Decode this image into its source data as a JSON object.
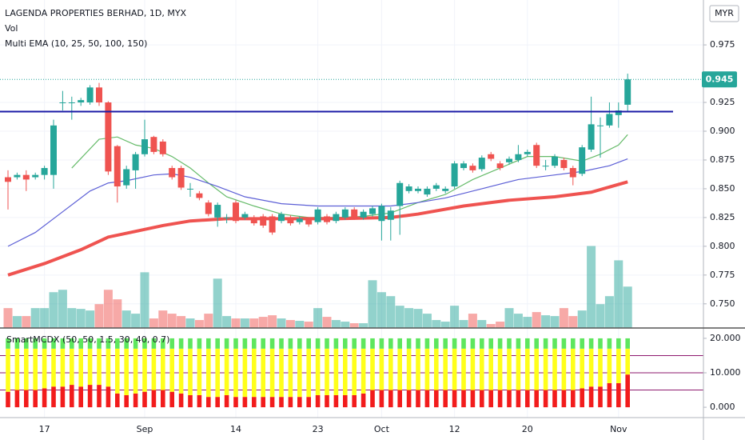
{
  "chart_data": [
    {
      "type": "candlestick",
      "title": "LAGENDA PROPERTIES BERHAD, 1D, MYX",
      "volume_label": "Vol",
      "ema_label": "Multi EMA (10, 25, 50, 100, 150)",
      "currency": "MYR",
      "categories": [
        null,
        null,
        null,
        null,
        "17",
        null,
        null,
        null,
        null,
        null,
        null,
        null,
        null,
        null,
        null,
        "Sep",
        null,
        null,
        null,
        null,
        null,
        null,
        null,
        null,
        null,
        "14",
        null,
        null,
        null,
        null,
        null,
        null,
        null,
        null,
        "23",
        null,
        null,
        null,
        null,
        null,
        null,
        "Oct",
        null,
        null,
        null,
        null,
        null,
        null,
        null,
        "12",
        null,
        null,
        null,
        null,
        null,
        null,
        null,
        "20",
        null,
        null,
        null,
        null,
        null,
        null,
        null,
        null,
        null,
        "Nov",
        null
      ],
      "open": [
        0.86,
        0.86,
        0.862,
        0.86,
        0.862,
        0.862,
        0.925,
        0.925,
        0.925,
        0.925,
        0.938,
        0.925,
        0.887,
        0.853,
        0.866,
        0.88,
        0.895,
        0.891,
        0.868,
        0.868,
        0.85,
        0.846,
        0.838,
        0.825,
        0.825,
        0.838,
        0.825,
        0.825,
        0.826,
        0.826,
        0.822,
        0.825,
        0.821,
        0.823,
        0.821,
        0.826,
        0.822,
        0.825,
        0.832,
        0.825,
        0.828,
        0.822,
        0.823,
        0.835,
        0.848,
        0.848,
        0.845,
        0.85,
        0.848,
        0.852,
        0.868,
        0.87,
        0.867,
        0.88,
        0.872,
        0.873,
        0.875,
        0.88,
        0.888,
        0.87,
        0.87,
        0.875,
        0.868,
        0.863,
        0.884,
        0.905,
        0.905,
        0.914,
        0.923
      ],
      "high": [
        0.866,
        0.864,
        0.866,
        0.864,
        0.87,
        0.91,
        0.935,
        0.93,
        0.929,
        0.94,
        0.942,
        0.926,
        0.888,
        0.87,
        0.882,
        0.91,
        0.896,
        0.893,
        0.87,
        0.87,
        0.855,
        0.848,
        0.84,
        0.838,
        0.828,
        0.84,
        0.83,
        0.827,
        0.828,
        0.828,
        0.83,
        0.827,
        0.826,
        0.825,
        0.834,
        0.828,
        0.83,
        0.834,
        0.834,
        0.832,
        0.835,
        0.837,
        0.834,
        0.857,
        0.854,
        0.852,
        0.852,
        0.855,
        0.852,
        0.874,
        0.874,
        0.872,
        0.879,
        0.882,
        0.874,
        0.878,
        0.888,
        0.884,
        0.89,
        0.875,
        0.88,
        0.877,
        0.87,
        0.888,
        0.93,
        0.912,
        0.925,
        0.925,
        0.95
      ],
      "low": [
        0.832,
        0.858,
        0.848,
        0.858,
        0.858,
        0.85,
        0.918,
        0.91,
        0.922,
        0.923,
        0.922,
        0.862,
        0.838,
        0.85,
        0.85,
        0.878,
        0.88,
        0.878,
        0.858,
        0.849,
        0.843,
        0.84,
        0.826,
        0.817,
        0.82,
        0.82,
        0.823,
        0.818,
        0.816,
        0.81,
        0.82,
        0.818,
        0.819,
        0.817,
        0.819,
        0.819,
        0.82,
        0.823,
        0.823,
        0.823,
        0.826,
        0.805,
        0.805,
        0.81,
        0.846,
        0.846,
        0.843,
        0.848,
        0.846,
        0.85,
        0.866,
        0.864,
        0.865,
        0.874,
        0.866,
        0.871,
        0.873,
        0.878,
        0.868,
        0.866,
        0.868,
        0.866,
        0.853,
        0.861,
        0.882,
        0.877,
        0.903,
        0.903,
        0.917
      ],
      "close": [
        0.856,
        0.862,
        0.858,
        0.862,
        0.868,
        0.905,
        0.925,
        0.925,
        0.927,
        0.938,
        0.925,
        0.865,
        0.852,
        0.867,
        0.88,
        0.893,
        0.882,
        0.88,
        0.86,
        0.851,
        0.85,
        0.842,
        0.828,
        0.836,
        0.825,
        0.822,
        0.828,
        0.82,
        0.818,
        0.812,
        0.828,
        0.82,
        0.824,
        0.819,
        0.832,
        0.821,
        0.828,
        0.832,
        0.825,
        0.83,
        0.833,
        0.835,
        0.831,
        0.855,
        0.852,
        0.85,
        0.85,
        0.853,
        0.85,
        0.872,
        0.872,
        0.866,
        0.877,
        0.876,
        0.868,
        0.876,
        0.88,
        0.882,
        0.87,
        0.87,
        0.878,
        0.868,
        0.86,
        0.886,
        0.906,
        0.905,
        0.915,
        0.918,
        0.945
      ],
      "volume": [
        25,
        15,
        15,
        25,
        25,
        45,
        48,
        25,
        24,
        22,
        30,
        48,
        36,
        22,
        18,
        70,
        12,
        22,
        18,
        15,
        12,
        10,
        18,
        62,
        15,
        12,
        12,
        12,
        14,
        16,
        12,
        10,
        9,
        8,
        25,
        14,
        10,
        8,
        6,
        6,
        60,
        45,
        40,
        28,
        25,
        24,
        18,
        10,
        8,
        28,
        10,
        18,
        10,
        5,
        8,
        25,
        18,
        14,
        20,
        16,
        15,
        25,
        15,
        22,
        103,
        30,
        40,
        85,
        52
      ],
      "up_color": "#26a69a",
      "down_color": "#ef5350",
      "ema_lines": [
        {
          "color": "#66bb6a",
          "width": 1.2,
          "x": [
            7,
            10,
            12,
            14,
            16,
            18,
            20,
            22,
            24,
            27,
            30,
            33,
            36,
            39,
            42,
            45,
            48,
            51,
            54,
            57,
            60,
            63,
            65,
            67,
            68
          ],
          "values": [
            0.868,
            0.893,
            0.895,
            0.888,
            0.885,
            0.878,
            0.868,
            0.855,
            0.843,
            0.835,
            0.828,
            0.825,
            0.825,
            0.826,
            0.829,
            0.838,
            0.845,
            0.858,
            0.868,
            0.878,
            0.878,
            0.874,
            0.88,
            0.888,
            0.897
          ]
        },
        {
          "color": "#5c5fd6",
          "width": 1.2,
          "x": [
            0,
            3,
            6,
            9,
            11,
            13,
            16,
            18,
            20,
            23,
            26,
            30,
            34,
            38,
            42,
            45,
            48,
            52,
            56,
            60,
            63,
            66,
            68
          ],
          "values": [
            0.8,
            0.812,
            0.83,
            0.848,
            0.855,
            0.857,
            0.862,
            0.863,
            0.86,
            0.852,
            0.843,
            0.837,
            0.835,
            0.835,
            0.835,
            0.838,
            0.842,
            0.85,
            0.858,
            0.862,
            0.865,
            0.87,
            0.876
          ]
        },
        {
          "color": "#ef5350",
          "width": 4,
          "x": [
            0,
            4,
            8,
            11,
            14,
            17,
            20,
            24,
            30,
            36,
            42,
            45,
            50,
            55,
            60,
            64,
            68
          ],
          "values": [
            0.775,
            0.785,
            0.797,
            0.808,
            0.813,
            0.818,
            0.822,
            0.824,
            0.824,
            0.824,
            0.825,
            0.828,
            0.835,
            0.84,
            0.843,
            0.847,
            0.856
          ]
        }
      ],
      "hline": {
        "value": 0.917,
        "color": "#1a1aa6"
      },
      "last_price": 0.945,
      "ylim": [
        0.729,
        1.014
      ],
      "yticks": [
        0.975,
        {
          "value": 0.9,
          "label": "0.900"
        },
        0.925,
        0.875,
        {
          "value": 0.85,
          "label": "0.850"
        },
        0.825,
        {
          "value": 0.8,
          "label": "0.800"
        },
        0.775,
        {
          "value": 0.75,
          "label": "0.750"
        }
      ],
      "grid": true
    },
    {
      "type": "bar",
      "title": "SmartMCDX (50, 50, 1.5, 30, 40, 0.7)",
      "stacked": true,
      "series": [
        {
          "color": "#f21c1c",
          "values": [
            4.5,
            5,
            5,
            5,
            5.5,
            6,
            6,
            6.5,
            6,
            6.5,
            6.5,
            6,
            4,
            3.5,
            4,
            4.5,
            5,
            5,
            4.5,
            4,
            3.5,
            3.5,
            3,
            3,
            3.5,
            3,
            3,
            3,
            3,
            3,
            3,
            3,
            3,
            3,
            3.5,
            3.5,
            3.5,
            3.5,
            3.5,
            4,
            5,
            5,
            5,
            5,
            5,
            5,
            5,
            5,
            5,
            5,
            5,
            5,
            5,
            5,
            5,
            5,
            5,
            5,
            5,
            5,
            5,
            5,
            5,
            5.5,
            6,
            6,
            7,
            7,
            9.5
          ]
        },
        {
          "color": "#ffff1a",
          "values": [
            12.5,
            12,
            12,
            12,
            11.5,
            11,
            11,
            10.5,
            11,
            10.5,
            10.5,
            11,
            13,
            13.5,
            13,
            12.5,
            12,
            12,
            12.5,
            13,
            13.5,
            13.5,
            14,
            14,
            13.5,
            14,
            14,
            14,
            14,
            14,
            14,
            14,
            14,
            14,
            13.5,
            13.5,
            13.5,
            13.5,
            13.5,
            13,
            12,
            12,
            12,
            12,
            12,
            12,
            12,
            12,
            12,
            12,
            12,
            12,
            12,
            12,
            12,
            12,
            12,
            12,
            12,
            12,
            12,
            12,
            12,
            11.5,
            11,
            11,
            10,
            10,
            7.5
          ]
        },
        {
          "color": "#5ee65e",
          "values": [
            3,
            3,
            3,
            3,
            3,
            3,
            3,
            3,
            3,
            3,
            3,
            3,
            3,
            3,
            3,
            3,
            3,
            3,
            3,
            3,
            3,
            3,
            3,
            3,
            3,
            3,
            3,
            3,
            3,
            3,
            3,
            3,
            3,
            3,
            3,
            3,
            3,
            3,
            3,
            3,
            3,
            3,
            3,
            3,
            3,
            3,
            3,
            3,
            3,
            3,
            3,
            3,
            3,
            3,
            3,
            3,
            3,
            3,
            3,
            3,
            3,
            3,
            3,
            3,
            3,
            3,
            3,
            3,
            3
          ]
        }
      ],
      "levels": [
        5,
        10,
        15
      ],
      "level_color": "#8e1a6e",
      "ylim": [
        -3,
        23
      ],
      "yticks": [
        {
          "value": 20,
          "label": "20.000"
        },
        {
          "value": 10,
          "label": "10.000"
        },
        {
          "value": 0,
          "label": "0.000"
        }
      ]
    }
  ]
}
